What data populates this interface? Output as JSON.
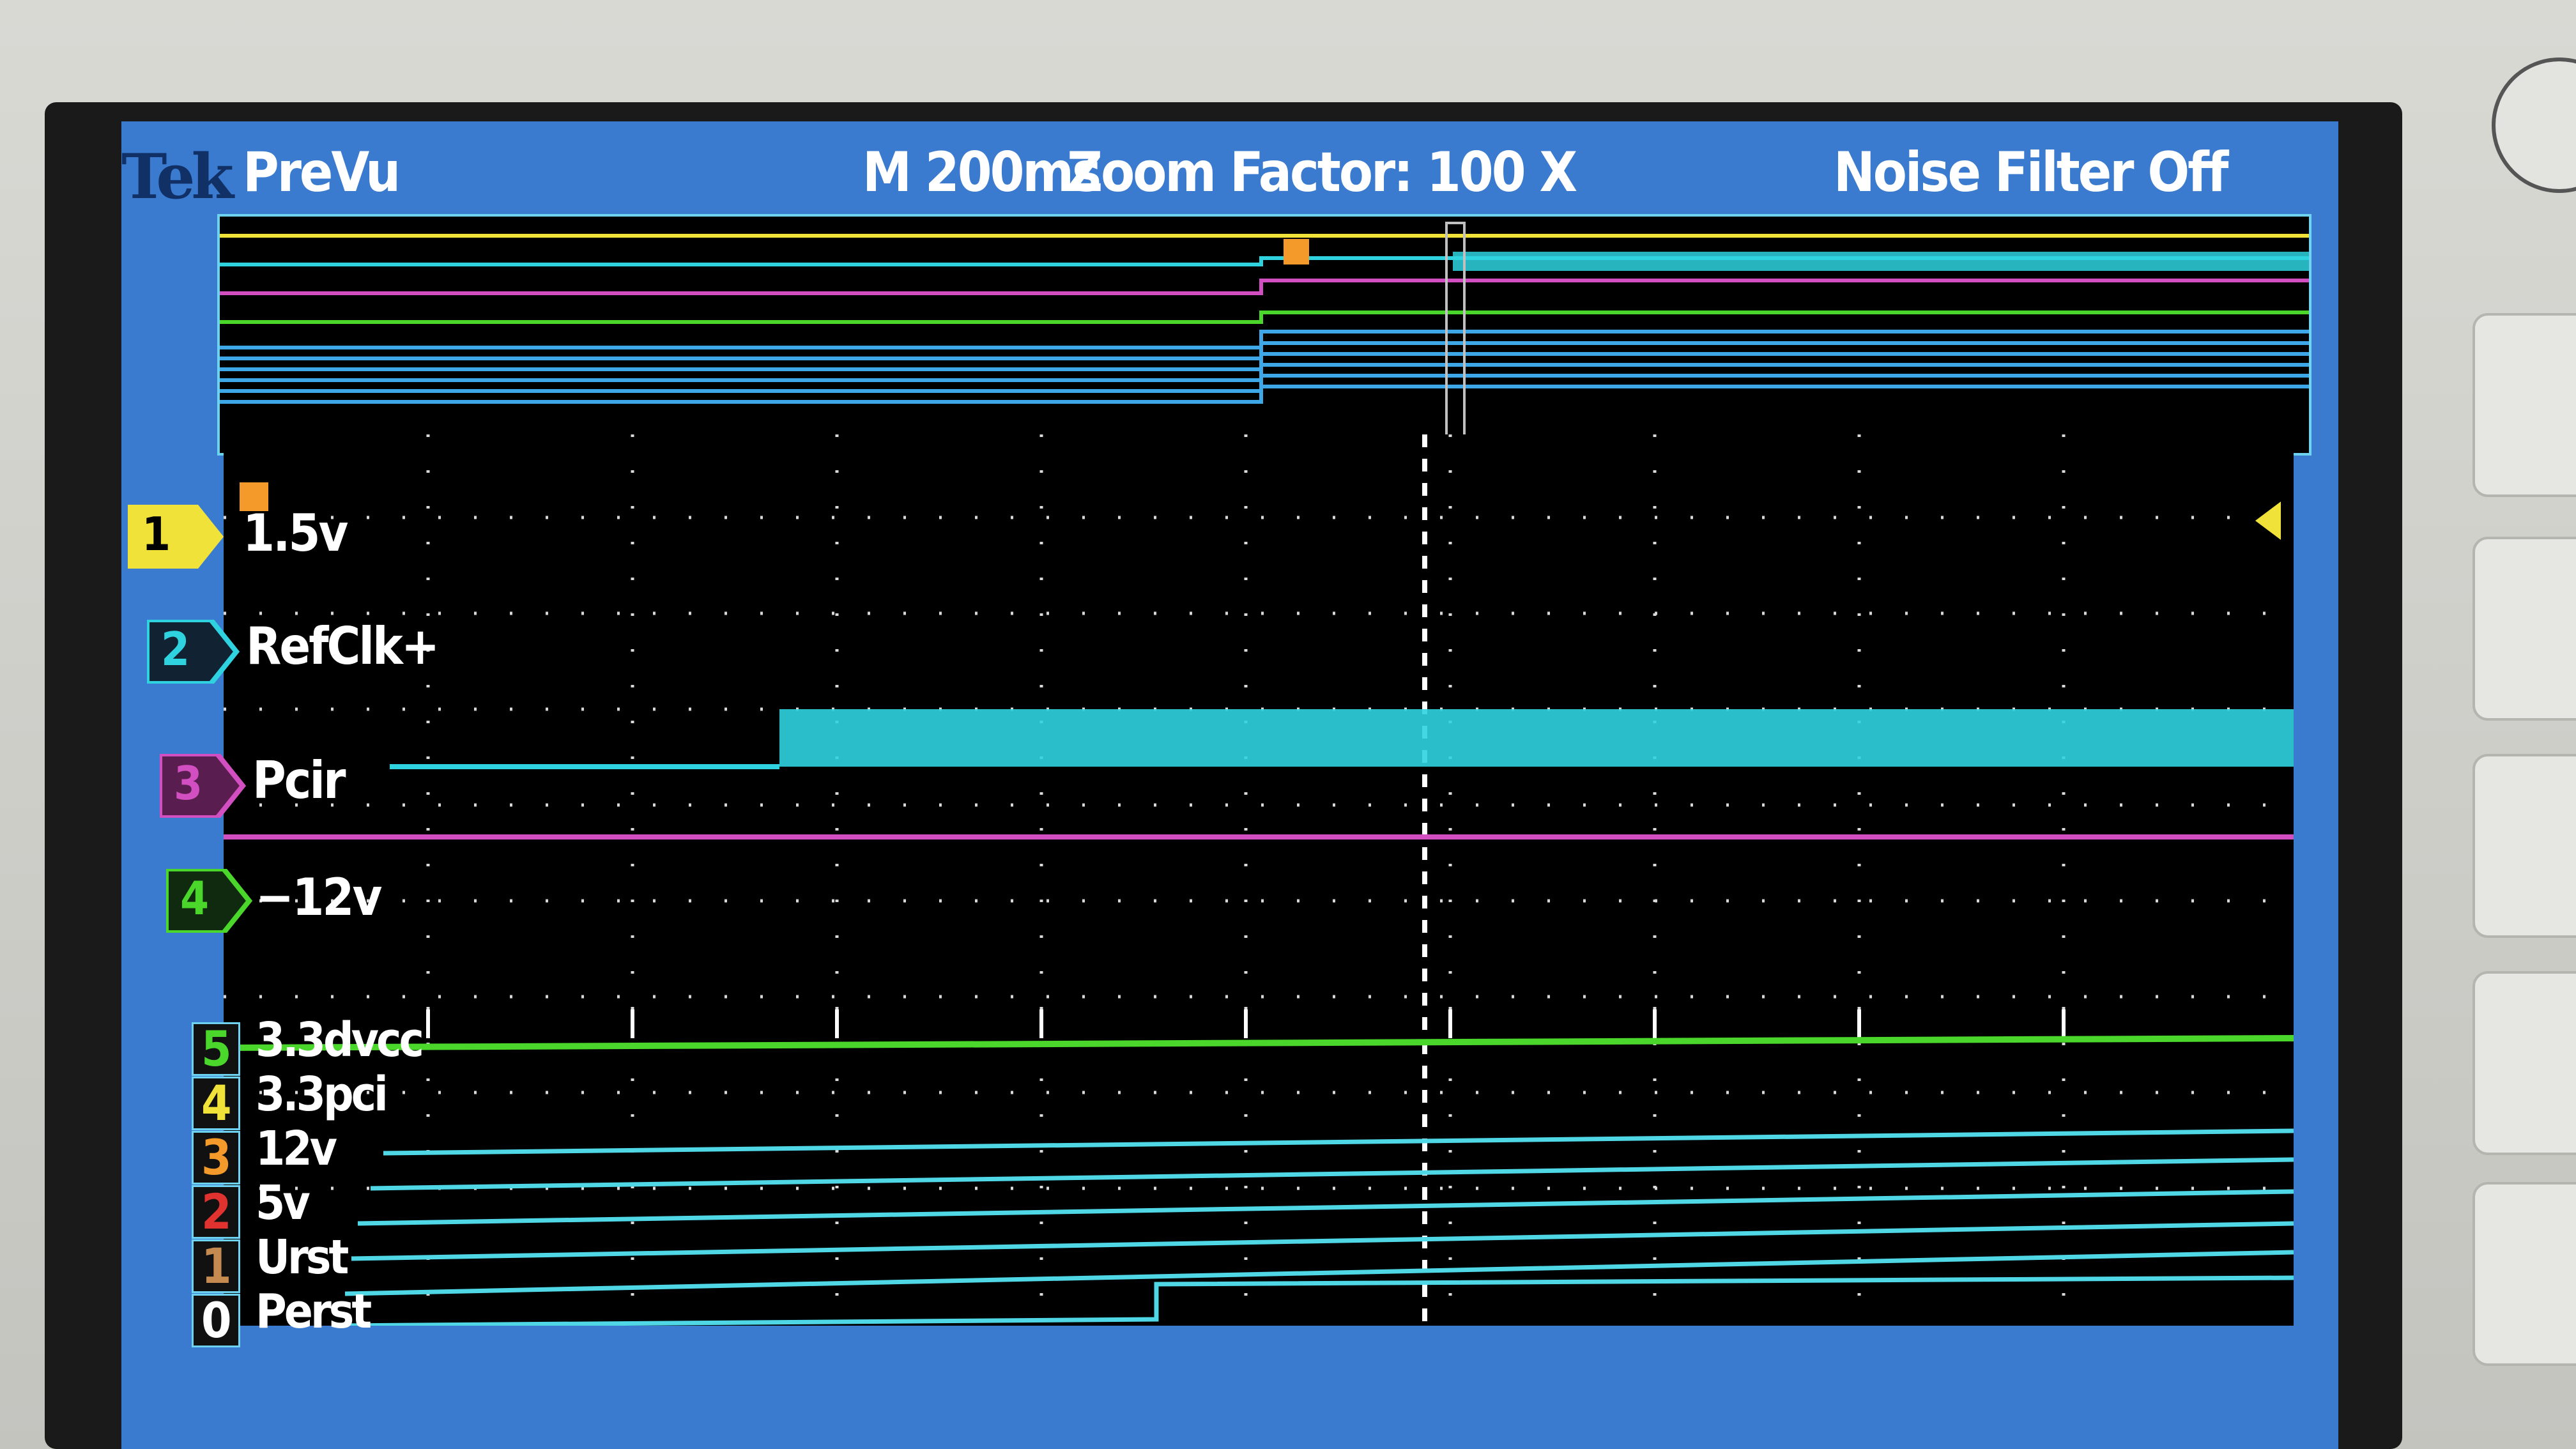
{
  "header": {
    "brand": "Tek",
    "mode": "PreVu",
    "timebase": "M 200ms",
    "zoom": "Zoom Factor: 100 X",
    "filter": "Noise Filter Off"
  },
  "channels": [
    {
      "num": "1",
      "label": "1.5v",
      "color": "#f1e23a"
    },
    {
      "num": "2",
      "label": "RefClk+",
      "color": "#2ed3df"
    },
    {
      "num": "3",
      "label": "Pcir",
      "color": "#d24fc1"
    },
    {
      "num": "4",
      "label": "−12v",
      "color": "#4ad62b"
    }
  ],
  "digital": [
    {
      "num": "5",
      "label": "3.3dvcc",
      "color": "#4ad62b"
    },
    {
      "num": "4",
      "label": "3.3pci",
      "color": "#f1e23a"
    },
    {
      "num": "3",
      "label": "12v",
      "color": "#f39a2a"
    },
    {
      "num": "2",
      "label": "5v",
      "color": "#e0332f"
    },
    {
      "num": "1",
      "label": "Urst",
      "color": "#8b5a2b"
    },
    {
      "num": "0",
      "label": "Perst",
      "color": "#111111"
    }
  ],
  "colors": {
    "screen_bg": "#3a7bd0",
    "trace_bg": "#000000",
    "ch1": "#f1e23a",
    "ch2": "#2ed3df",
    "ch3": "#d24fc1",
    "ch4": "#4ad62b",
    "digital": "#4fd7e6"
  }
}
